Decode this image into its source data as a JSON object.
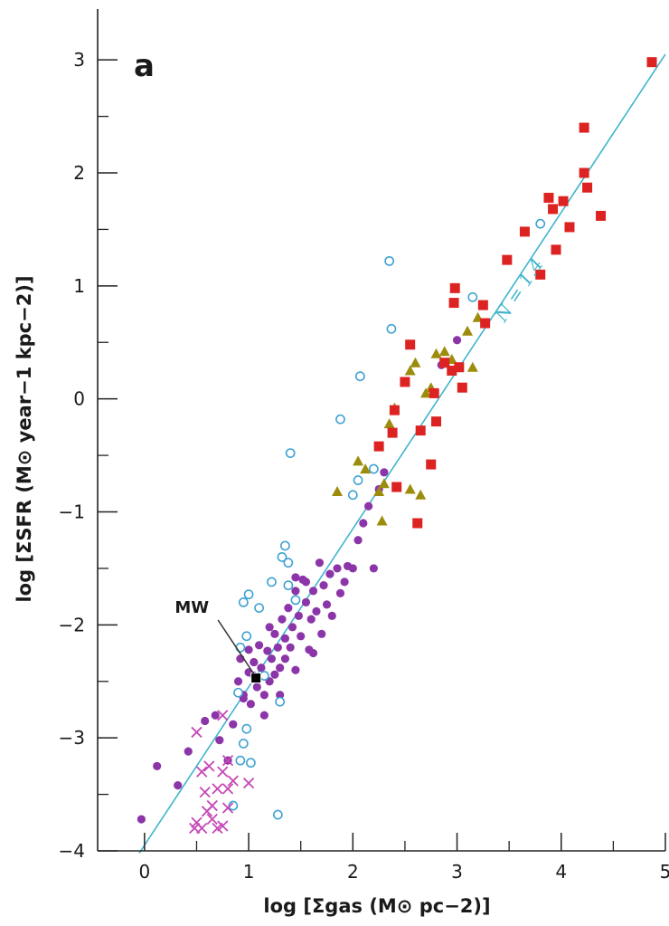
{
  "chart_data": {
    "type": "scatter",
    "panel_label": "a",
    "xlabel": "log [Σgas (M⊙ pc−2)]",
    "ylabel": "log [ΣSFR (M⊙ year−1 kpc−2)]",
    "xlim": [
      -0.45,
      5.0
    ],
    "ylim": [
      -4.0,
      3.45
    ],
    "x_ticks": [
      0,
      1,
      2,
      3,
      4,
      5
    ],
    "y_ticks": [
      -4,
      -3,
      -2,
      -1,
      0,
      1,
      2,
      3
    ],
    "fit_line": {
      "label": "N = 1.4",
      "slope": 1.4,
      "intercept": -3.95,
      "color": "#3fb4cc"
    },
    "annotations": [
      {
        "text": "MW",
        "x": 1.07,
        "y": -2.47
      }
    ],
    "colors": {
      "purple_dots": "#8c35a8",
      "open_circles": "#3fa3d2",
      "triangles": "#9c8c0c",
      "squares": "#dd2222",
      "crosses": "#c548b5",
      "fit": "#3fb4cc",
      "mw": "#000000"
    },
    "series": [
      {
        "marker": "filled-circle",
        "points": [
          [
            -0.03,
            -3.72
          ],
          [
            0.12,
            -3.25
          ],
          [
            0.32,
            -3.42
          ],
          [
            0.42,
            -3.12
          ],
          [
            0.58,
            -2.85
          ],
          [
            0.68,
            -2.8
          ],
          [
            0.72,
            -3.02
          ],
          [
            0.8,
            -3.2
          ],
          [
            0.85,
            -2.88
          ],
          [
            0.9,
            -2.5
          ],
          [
            0.92,
            -2.3
          ],
          [
            0.95,
            -2.62
          ],
          [
            1.0,
            -2.42
          ],
          [
            1.0,
            -2.22
          ],
          [
            1.02,
            -2.7
          ],
          [
            1.05,
            -2.33
          ],
          [
            1.08,
            -2.55
          ],
          [
            1.1,
            -2.18
          ],
          [
            1.12,
            -2.38
          ],
          [
            1.15,
            -2.62
          ],
          [
            1.18,
            -2.23
          ],
          [
            1.2,
            -2.5
          ],
          [
            1.22,
            -2.3
          ],
          [
            1.25,
            -2.08
          ],
          [
            1.25,
            -2.44
          ],
          [
            1.28,
            -2.2
          ],
          [
            1.3,
            -2.38
          ],
          [
            1.32,
            -1.95
          ],
          [
            1.35,
            -2.3
          ],
          [
            1.35,
            -2.12
          ],
          [
            1.38,
            -1.85
          ],
          [
            1.4,
            -2.2
          ],
          [
            1.42,
            -2.02
          ],
          [
            1.45,
            -1.7
          ],
          [
            1.45,
            -2.4
          ],
          [
            1.48,
            -1.92
          ],
          [
            1.5,
            -2.1
          ],
          [
            1.52,
            -1.6
          ],
          [
            1.55,
            -1.8
          ],
          [
            1.58,
            -2.22
          ],
          [
            1.6,
            -1.95
          ],
          [
            1.62,
            -1.7
          ],
          [
            1.65,
            -1.88
          ],
          [
            1.68,
            -1.45
          ],
          [
            1.7,
            -2.08
          ],
          [
            1.72,
            -1.65
          ],
          [
            1.75,
            -1.82
          ],
          [
            1.78,
            -1.55
          ],
          [
            1.8,
            -1.92
          ],
          [
            1.85,
            -1.5
          ],
          [
            1.88,
            -1.72
          ],
          [
            1.92,
            -1.62
          ],
          [
            1.95,
            -1.48
          ],
          [
            2.0,
            -1.5
          ],
          [
            2.05,
            -1.25
          ],
          [
            2.1,
            -1.1
          ],
          [
            2.15,
            -0.95
          ],
          [
            2.2,
            -1.5
          ],
          [
            2.25,
            -0.8
          ],
          [
            2.3,
            -0.65
          ],
          [
            2.85,
            0.3
          ],
          [
            3.0,
            0.52
          ],
          [
            1.55,
            -1.62
          ],
          [
            1.3,
            -2.62
          ],
          [
            1.15,
            -2.8
          ],
          [
            1.05,
            -2.45
          ],
          [
            0.95,
            -2.65
          ],
          [
            1.2,
            -2.02
          ],
          [
            1.45,
            -1.58
          ],
          [
            1.62,
            -2.25
          ]
        ]
      },
      {
        "marker": "open-circle",
        "points": [
          [
            2.35,
            1.22
          ],
          [
            2.37,
            0.62
          ],
          [
            3.8,
            1.55
          ],
          [
            3.15,
            0.9
          ],
          [
            2.07,
            0.2
          ],
          [
            1.88,
            -0.18
          ],
          [
            1.4,
            -0.48
          ],
          [
            2.2,
            -0.62
          ],
          [
            2.05,
            -0.72
          ],
          [
            2.0,
            -0.85
          ],
          [
            1.35,
            -1.3
          ],
          [
            1.32,
            -1.4
          ],
          [
            1.38,
            -1.45
          ],
          [
            1.22,
            -1.62
          ],
          [
            1.38,
            -1.65
          ],
          [
            1.45,
            -1.78
          ],
          [
            1.0,
            -1.73
          ],
          [
            1.1,
            -1.85
          ],
          [
            0.95,
            -1.8
          ],
          [
            0.98,
            -2.1
          ],
          [
            0.92,
            -2.2
          ],
          [
            0.9,
            -2.6
          ],
          [
            0.98,
            -2.92
          ],
          [
            0.95,
            -3.05
          ],
          [
            0.92,
            -3.2
          ],
          [
            1.02,
            -3.22
          ],
          [
            1.3,
            -2.68
          ],
          [
            1.28,
            -3.68
          ],
          [
            0.85,
            -3.6
          ],
          [
            1.15,
            -2.45
          ]
        ]
      },
      {
        "marker": "triangle",
        "points": [
          [
            1.85,
            -0.82
          ],
          [
            2.05,
            -0.55
          ],
          [
            2.12,
            -0.62
          ],
          [
            2.25,
            -0.82
          ],
          [
            2.28,
            -1.08
          ],
          [
            2.35,
            -0.22
          ],
          [
            2.4,
            -0.08
          ],
          [
            2.55,
            0.25
          ],
          [
            2.6,
            0.32
          ],
          [
            2.65,
            -0.85
          ],
          [
            2.7,
            0.05
          ],
          [
            2.75,
            0.1
          ],
          [
            2.8,
            0.4
          ],
          [
            2.88,
            0.42
          ],
          [
            2.95,
            0.35
          ],
          [
            3.1,
            0.6
          ],
          [
            3.15,
            0.28
          ],
          [
            3.2,
            0.72
          ],
          [
            2.55,
            -0.8
          ],
          [
            2.3,
            -0.75
          ]
        ]
      },
      {
        "marker": "square",
        "points": [
          [
            4.87,
            2.98
          ],
          [
            4.22,
            2.4
          ],
          [
            4.22,
            2.0
          ],
          [
            4.25,
            1.87
          ],
          [
            3.88,
            1.78
          ],
          [
            4.02,
            1.75
          ],
          [
            3.92,
            1.68
          ],
          [
            4.38,
            1.62
          ],
          [
            3.65,
            1.48
          ],
          [
            4.08,
            1.52
          ],
          [
            3.95,
            1.32
          ],
          [
            3.48,
            1.23
          ],
          [
            3.8,
            1.1
          ],
          [
            2.98,
            0.98
          ],
          [
            2.97,
            0.85
          ],
          [
            3.25,
            0.83
          ],
          [
            3.27,
            0.67
          ],
          [
            2.55,
            0.48
          ],
          [
            2.88,
            0.32
          ],
          [
            3.02,
            0.28
          ],
          [
            2.95,
            0.25
          ],
          [
            2.5,
            0.15
          ],
          [
            2.78,
            0.05
          ],
          [
            3.05,
            0.1
          ],
          [
            2.4,
            -0.1
          ],
          [
            2.65,
            -0.28
          ],
          [
            2.38,
            -0.3
          ],
          [
            2.25,
            -0.42
          ],
          [
            2.75,
            -0.58
          ],
          [
            2.42,
            -0.78
          ],
          [
            2.62,
            -1.1
          ],
          [
            2.8,
            -0.2
          ]
        ]
      },
      {
        "marker": "cross",
        "points": [
          [
            0.5,
            -3.75
          ],
          [
            0.55,
            -3.8
          ],
          [
            0.6,
            -3.65
          ],
          [
            0.65,
            -3.72
          ],
          [
            0.7,
            -3.8
          ],
          [
            0.75,
            -3.78
          ],
          [
            0.8,
            -3.62
          ],
          [
            0.58,
            -3.48
          ],
          [
            0.7,
            -3.45
          ],
          [
            0.8,
            -3.45
          ],
          [
            0.62,
            -3.25
          ],
          [
            0.75,
            -3.3
          ],
          [
            0.55,
            -3.3
          ],
          [
            0.85,
            -3.38
          ],
          [
            1.0,
            -3.4
          ],
          [
            0.75,
            -2.8
          ],
          [
            0.5,
            -2.95
          ],
          [
            0.48,
            -3.8
          ],
          [
            0.65,
            -3.6
          ],
          [
            0.8,
            -3.2
          ]
        ]
      }
    ],
    "mw_point": [
      1.07,
      -2.47
    ]
  }
}
